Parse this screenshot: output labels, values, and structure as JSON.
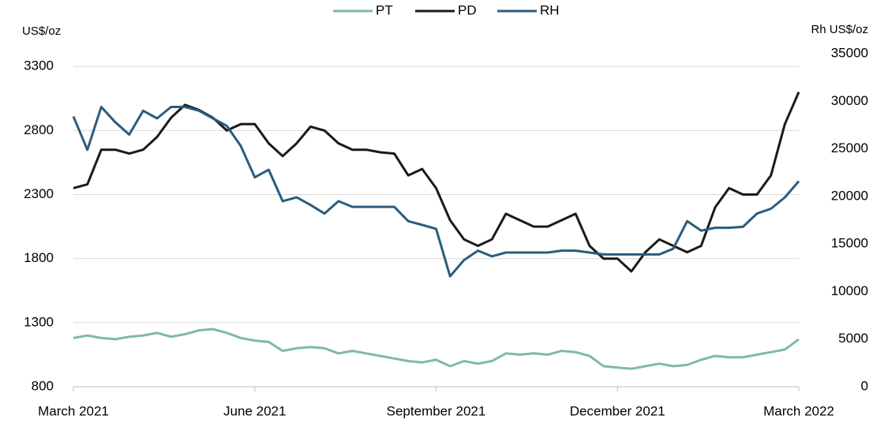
{
  "chart_data": {
    "type": "line",
    "y_label": "US$/oz",
    "y2_label": "Rh US$/oz",
    "categories": [
      "March 2021",
      null,
      null,
      null,
      null,
      null,
      null,
      null,
      null,
      null,
      null,
      null,
      null,
      "June 2021",
      null,
      null,
      null,
      null,
      null,
      null,
      null,
      null,
      null,
      null,
      null,
      null,
      "September 2021",
      null,
      null,
      null,
      null,
      null,
      null,
      null,
      null,
      null,
      null,
      null,
      null,
      "December 2021",
      null,
      null,
      null,
      null,
      null,
      null,
      null,
      null,
      null,
      null,
      null,
      null,
      "March 2022"
    ],
    "series": [
      {
        "name": "PT",
        "color": "#82b8a9",
        "axis": "y",
        "values": [
          1180,
          1200,
          1180,
          1170,
          1190,
          1200,
          1220,
          1190,
          1210,
          1240,
          1250,
          1220,
          1180,
          1160,
          1150,
          1080,
          1100,
          1110,
          1100,
          1060,
          1080,
          1060,
          1040,
          1020,
          1000,
          990,
          1010,
          960,
          1000,
          980,
          1000,
          1060,
          1050,
          1060,
          1050,
          1080,
          1070,
          1040,
          960,
          950,
          940,
          960,
          980,
          960,
          970,
          1010,
          1040,
          1030,
          1030,
          1050,
          1070,
          1090,
          1170
        ]
      },
      {
        "name": "PD",
        "color": "#1a1a1a",
        "axis": "y",
        "values": [
          2350,
          2380,
          2650,
          2650,
          2620,
          2650,
          2750,
          2900,
          3000,
          2960,
          2900,
          2800,
          2850,
          2850,
          2700,
          2600,
          2700,
          2830,
          2800,
          2700,
          2650,
          2650,
          2630,
          2620,
          2450,
          2500,
          2350,
          2100,
          1950,
          1900,
          1950,
          2150,
          2100,
          2050,
          2050,
          2100,
          2150,
          1900,
          1800,
          1800,
          1700,
          1850,
          1950,
          1900,
          1850,
          1900,
          2200,
          2350,
          2300,
          2300,
          2450,
          2850,
          3100
        ]
      },
      {
        "name": "RH",
        "color": "#2b5d7c",
        "axis": "y2",
        "values": [
          28400,
          24900,
          29400,
          27800,
          26500,
          29000,
          28200,
          29400,
          29400,
          29000,
          28200,
          27400,
          25300,
          22000,
          22800,
          19500,
          19900,
          19100,
          18200,
          19500,
          18900,
          18900,
          18900,
          18900,
          17400,
          17000,
          16600,
          11600,
          13300,
          14300,
          13700,
          14100,
          14100,
          14100,
          14100,
          14300,
          14300,
          14100,
          13900,
          13900,
          13900,
          13900,
          13900,
          14500,
          17400,
          16400,
          16700,
          16700,
          16800,
          18200,
          18700,
          19900,
          21600
        ]
      }
    ],
    "ylim": [
      800,
      3400
    ],
    "yticks": [
      800,
      1300,
      1800,
      2300,
      2800,
      3300
    ],
    "y2lim": [
      0,
      35000
    ],
    "y2ticks": [
      0,
      5000,
      10000,
      15000,
      20000,
      25000,
      30000,
      35000
    ],
    "grid": true,
    "legend": "top"
  }
}
